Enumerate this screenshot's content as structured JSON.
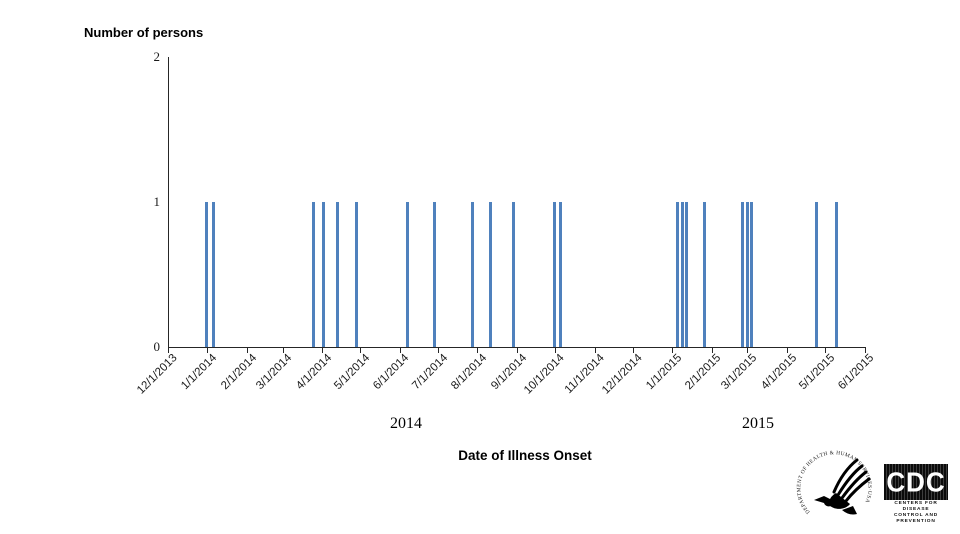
{
  "chart_data": {
    "type": "bar",
    "title": "Number of persons",
    "xlabel": "Date of Illness Onset",
    "ylabel": "Number of persons",
    "ylim": [
      0,
      2
    ],
    "y_ticks": [
      0,
      1,
      2
    ],
    "x_tick_labels": [
      "12/1/2013",
      "1/1/2014",
      "2/1/2014",
      "3/1/2014",
      "4/1/2014",
      "5/1/2014",
      "6/1/2014",
      "7/1/2014",
      "8/1/2014",
      "9/1/2014",
      "10/1/2014",
      "11/1/2014",
      "12/1/2014",
      "1/1/2015",
      "2/1/2015",
      "3/1/2015",
      "4/1/2015",
      "5/1/2015",
      "6/1/2015"
    ],
    "year_labels": [
      {
        "text": "2014"
      },
      {
        "text": "2015"
      }
    ],
    "legend": "none",
    "grid": "off",
    "bar_color": "#4F81BD",
    "total_cases": 22,
    "bars": [
      {
        "date": "12/31/2013",
        "value": 1
      },
      {
        "date": "1/5/2014",
        "value": 1
      },
      {
        "date": "3/25/2014",
        "value": 1
      },
      {
        "date": "4/2/2014",
        "value": 1
      },
      {
        "date": "4/13/2014",
        "value": 1
      },
      {
        "date": "4/28/2014",
        "value": 1
      },
      {
        "date": "6/7/2014",
        "value": 1
      },
      {
        "date": "6/28/2014",
        "value": 1
      },
      {
        "date": "7/28/2014",
        "value": 1
      },
      {
        "date": "8/11/2014",
        "value": 1
      },
      {
        "date": "8/29/2014",
        "value": 1
      },
      {
        "date": "9/30/2014",
        "value": 1
      },
      {
        "date": "10/5/2014",
        "value": 1
      },
      {
        "date": "1/5/2015",
        "value": 1
      },
      {
        "date": "1/9/2015",
        "value": 1
      },
      {
        "date": "1/12/2015",
        "value": 1
      },
      {
        "date": "1/26/2015",
        "value": 1
      },
      {
        "date": "2/25/2015",
        "value": 1
      },
      {
        "date": "3/1/2015",
        "value": 1
      },
      {
        "date": "3/4/2015",
        "value": 1
      },
      {
        "date": "4/24/2015",
        "value": 1
      },
      {
        "date": "5/10/2015",
        "value": 1
      }
    ]
  },
  "logos": {
    "hhs": {
      "ring_text": "DEPARTMENT OF HEALTH & HUMAN SERVICES·USA"
    },
    "cdc": {
      "acronym": "CDC",
      "line1": "Centers for Disease",
      "line2": "Control and Prevention"
    }
  }
}
